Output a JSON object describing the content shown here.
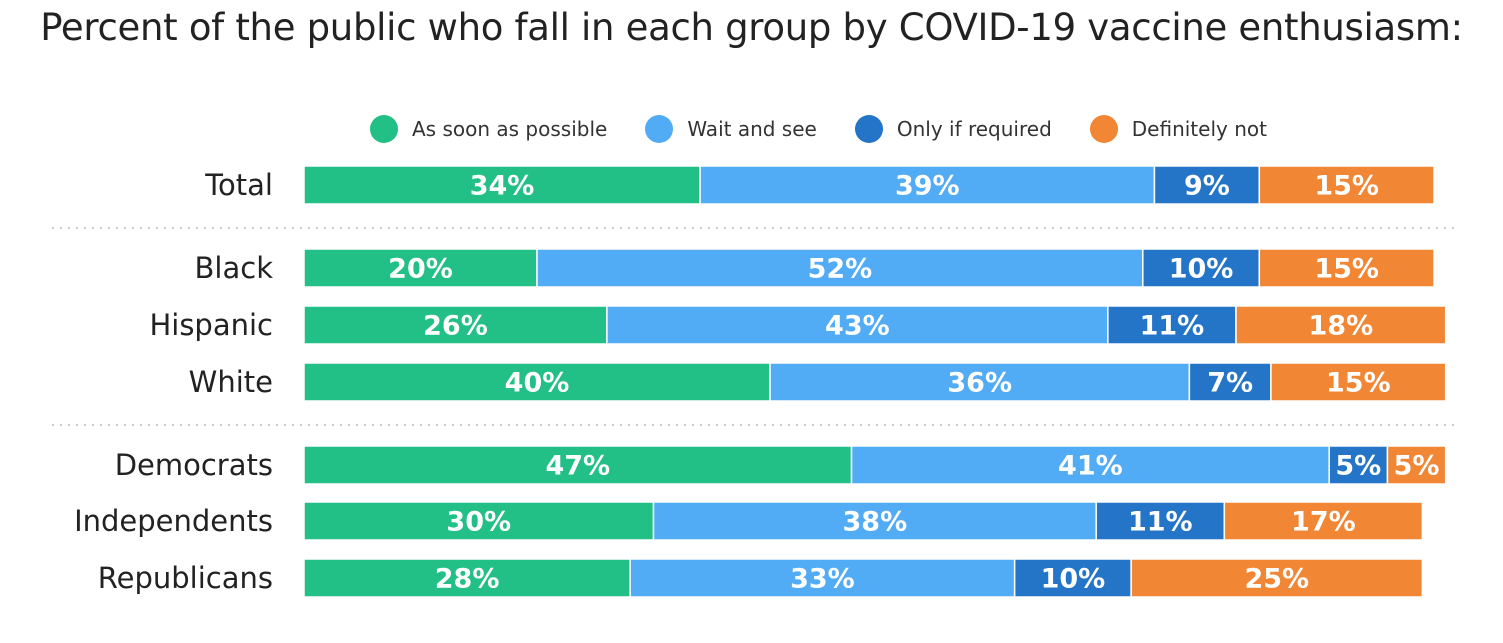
{
  "chart_data": {
    "type": "bar",
    "orientation": "horizontal",
    "stacked": true,
    "title": "Percent of the public who fall in each group by COVID-19 vaccine enthusiasm:",
    "legend_position": "top",
    "categories": [
      "Total",
      "Black",
      "Hispanic",
      "White",
      "Democrats",
      "Independents",
      "Republicans"
    ],
    "groups": [
      [
        "Total"
      ],
      [
        "Black",
        "Hispanic",
        "White"
      ],
      [
        "Democrats",
        "Independents",
        "Republicans"
      ]
    ],
    "series": [
      {
        "name": "As soon as possible",
        "color": "#22bf86",
        "values": [
          34,
          20,
          26,
          40,
          47,
          30,
          28
        ]
      },
      {
        "name": "Wait and see",
        "color": "#52abf5",
        "values": [
          39,
          52,
          43,
          36,
          41,
          38,
          33
        ]
      },
      {
        "name": "Only if required",
        "color": "#2474c8",
        "values": [
          9,
          10,
          11,
          7,
          5,
          11,
          10
        ]
      },
      {
        "name": "Definitely not",
        "color": "#f18634",
        "values": [
          15,
          15,
          18,
          15,
          5,
          17,
          25
        ]
      }
    ],
    "value_suffix": "%"
  }
}
